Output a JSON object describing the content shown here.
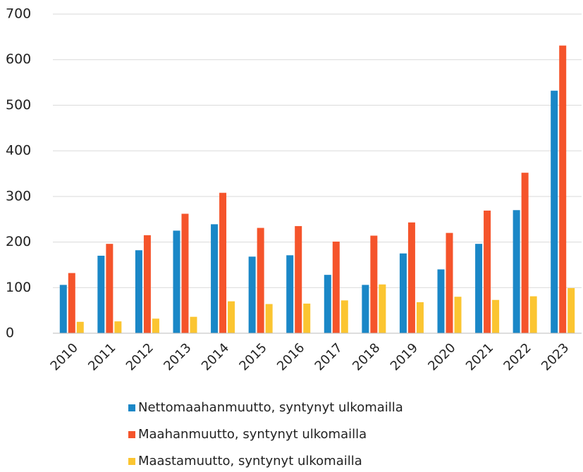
{
  "chart_data": {
    "type": "bar",
    "categories": [
      "2010",
      "2011",
      "2012",
      "2013",
      "2014",
      "2015",
      "2016",
      "2017",
      "2018",
      "2019",
      "2020",
      "2021",
      "2022",
      "2023"
    ],
    "series": [
      {
        "name": "Nettomaahanmuutto, syntynyt ulkomailla",
        "color": "#1a87c7",
        "values": [
          106,
          170,
          182,
          225,
          239,
          168,
          171,
          128,
          106,
          175,
          140,
          196,
          270,
          532
        ]
      },
      {
        "name": "Maahanmuutto, syntynyt ulkomailla",
        "color": "#f5542b",
        "values": [
          132,
          196,
          215,
          262,
          308,
          231,
          235,
          201,
          214,
          243,
          220,
          269,
          352,
          631
        ]
      },
      {
        "name": "Maastamuutto, syntynyt ulkomailla",
        "color": "#fbc531",
        "values": [
          25,
          26,
          32,
          36,
          70,
          64,
          65,
          72,
          107,
          68,
          80,
          73,
          81,
          99
        ]
      }
    ],
    "ylim": [
      0,
      700
    ],
    "yticks": [
      0,
      100,
      200,
      300,
      400,
      500,
      600,
      700
    ],
    "grid": true,
    "legend": "bottom"
  }
}
